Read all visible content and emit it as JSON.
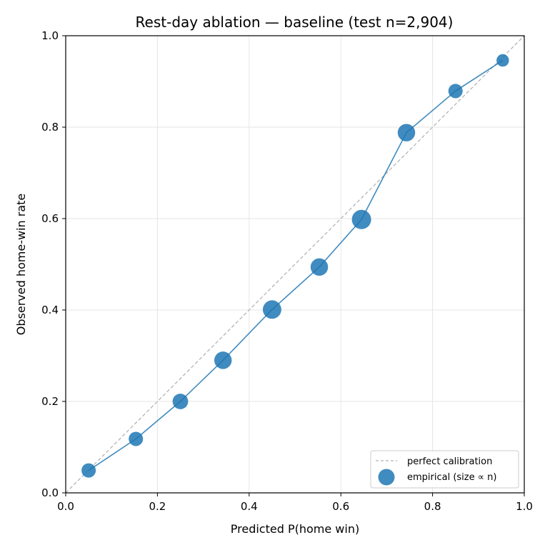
{
  "chart_data": {
    "type": "scatter",
    "title": "Rest-day ablation — baseline (test n=2,904)",
    "xlabel": "Predicted P(home win)",
    "ylabel": "Observed home-win rate",
    "xlim": [
      0.0,
      1.0
    ],
    "ylim": [
      0.0,
      1.0
    ],
    "xticks": [
      "0.0",
      "0.2",
      "0.4",
      "0.6",
      "0.8",
      "1.0"
    ],
    "yticks": [
      "0.0",
      "0.2",
      "0.4",
      "0.6",
      "0.8",
      "1.0"
    ],
    "grid": true,
    "legend_position": "lower-right",
    "colors": {
      "series": "#1f77b4",
      "reference": "#b0b0b0"
    },
    "series": [
      {
        "name": "empirical (size ∝ n)",
        "style": "markers-with-line",
        "x": [
          0.05,
          0.153,
          0.25,
          0.343,
          0.45,
          0.553,
          0.645,
          0.743,
          0.85,
          0.953
        ],
        "y": [
          0.049,
          0.118,
          0.2,
          0.29,
          0.401,
          0.494,
          0.598,
          0.788,
          0.879,
          0.946
        ],
        "relative_size": [
          0.55,
          0.55,
          0.65,
          0.82,
          0.92,
          0.82,
          1.0,
          0.82,
          0.55,
          0.42
        ]
      },
      {
        "name": "perfect calibration",
        "style": "dashed-line",
        "x": [
          0.0,
          1.0
        ],
        "y": [
          0.0,
          1.0
        ]
      }
    ]
  }
}
